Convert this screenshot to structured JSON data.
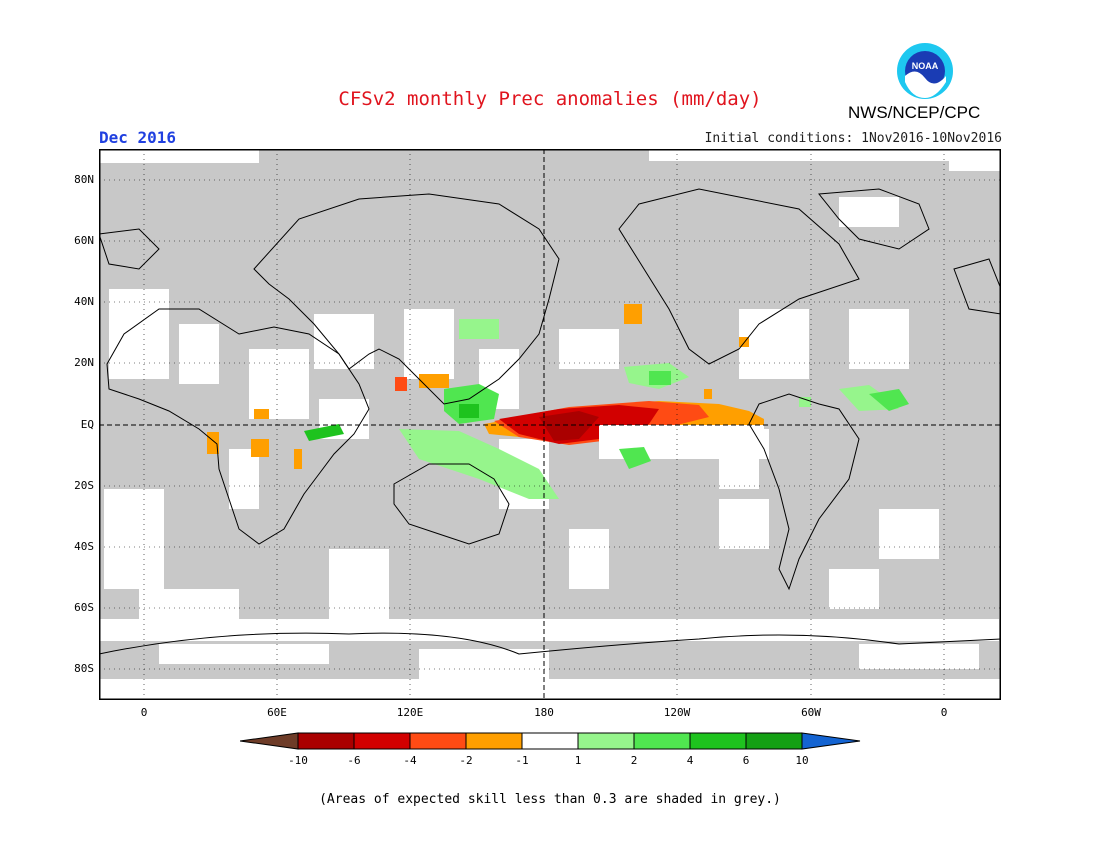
{
  "header": {
    "title": "CFSv2 monthly Prec anomalies (mm/day)",
    "month": "Dec 2016",
    "initial_conditions": "Initial conditions: 1Nov2016-10Nov2016",
    "agency": "NWS/NCEP/CPC",
    "logo_text": "NOAA"
  },
  "map": {
    "lat_labels": [
      "80N",
      "60N",
      "40N",
      "20N",
      "EQ",
      "20S",
      "40S",
      "60S",
      "80S"
    ],
    "lon_labels": [
      "0",
      "60E",
      "120E",
      "180",
      "120W",
      "60W",
      "0"
    ],
    "colors": {
      "skill_grey": "#c8c8c8",
      "no_data": "#ffffff",
      "dry_1": "#ff9f00",
      "dry_2": "#ff4b14",
      "dry_3": "#d20000",
      "dry_4": "#aa0000",
      "wet_1": "#96f58c",
      "wet_2": "#50e650",
      "wet_3": "#1ec31e",
      "wet_4": "#14a014"
    }
  },
  "colorbar": {
    "tick_labels": [
      "-10",
      "-6",
      "-4",
      "-2",
      "-1",
      "1",
      "2",
      "4",
      "6",
      "10"
    ],
    "colors": [
      "#6e3c28",
      "#aa0000",
      "#d20000",
      "#ff4b14",
      "#ff9f00",
      "#ffffff",
      "#96f58c",
      "#50e650",
      "#1ec31e",
      "#14a014",
      "#1464d2"
    ]
  },
  "footer": {
    "note": "(Areas of expected skill less than 0.3 are shaded in grey.)"
  }
}
